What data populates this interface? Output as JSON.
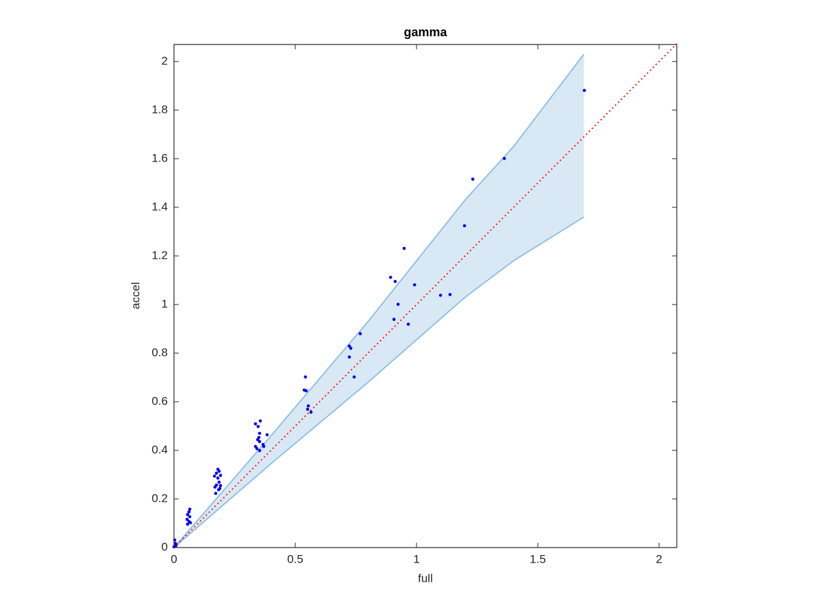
{
  "chart_data": {
    "type": "scatter",
    "title": "gamma",
    "x_label": "full",
    "y_label": "accel",
    "xlim": [
      0,
      2.073
    ],
    "ylim": [
      0,
      2.07
    ],
    "xticks": [
      0,
      0.5,
      1,
      1.5,
      2
    ],
    "yticks": [
      0,
      0.2,
      0.4,
      0.6,
      0.8,
      1,
      1.2,
      1.4,
      1.6,
      1.8,
      2
    ],
    "band": {
      "color": "#88bde6",
      "fill": "#d9e8f5",
      "x": [
        0,
        0.4,
        0.8,
        1.2,
        1.4,
        1.69
      ],
      "lower": [
        0,
        0.345,
        0.68,
        1.03,
        1.18,
        1.36
      ],
      "upper": [
        0,
        0.46,
        0.93,
        1.43,
        1.65,
        2.03
      ]
    },
    "reference_line": {
      "color": "#ff0000",
      "x": [
        0,
        2.073
      ],
      "y": [
        0,
        2.073
      ]
    },
    "points": {
      "color": "#0000ff",
      "x": [
        1.692,
        1.362,
        1.232,
        1.198,
        0.949,
        0.893,
        0.912,
        0.992,
        1.099,
        1.138,
        0.924,
        0.907,
        0.966,
        0.768,
        0.723,
        0.729,
        0.723,
        0.743,
        0.542,
        0.537,
        0.545,
        0.554,
        0.551,
        0.565,
        0.336,
        0.347,
        0.356,
        0.384,
        0.353,
        0.35,
        0.345,
        0.367,
        0.37,
        0.336,
        0.342,
        0.353,
        0.353,
        0.181,
        0.186,
        0.175,
        0.192,
        0.167,
        0.181,
        0.186,
        0.175,
        0.169,
        0.189,
        0.172,
        0.184,
        0.192,
        0.065,
        0.062,
        0.056,
        0.065,
        0.054,
        0.062,
        0.056,
        0.068,
        0.003,
        0.006,
        0,
        0.008
      ],
      "y": [
        1.881,
        1.601,
        1.516,
        1.324,
        1.231,
        1.112,
        1.095,
        1.081,
        1.038,
        1.041,
        1.001,
        0.939,
        0.919,
        0.88,
        0.829,
        0.82,
        0.784,
        0.702,
        0.702,
        0.648,
        0.645,
        0.583,
        0.569,
        0.557,
        0.509,
        0.498,
        0.521,
        0.464,
        0.47,
        0.453,
        0.444,
        0.424,
        0.416,
        0.416,
        0.407,
        0.399,
        0.436,
        0.322,
        0.314,
        0.306,
        0.297,
        0.294,
        0.286,
        0.269,
        0.257,
        0.249,
        0.243,
        0.223,
        0.238,
        0.255,
        0.158,
        0.147,
        0.136,
        0.127,
        0.116,
        0.107,
        0.096,
        0.102,
        0.031,
        0.017,
        0.003,
        0.008
      ]
    }
  }
}
